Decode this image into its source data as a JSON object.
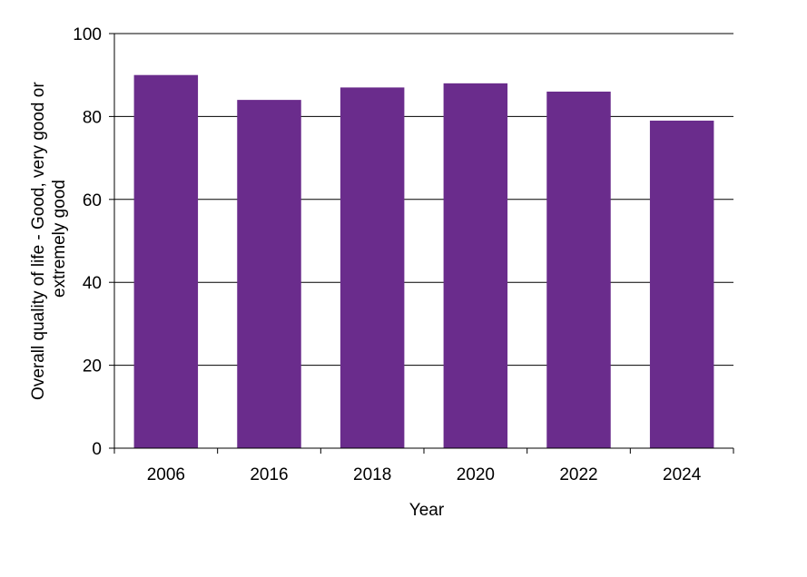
{
  "chart_data": {
    "type": "bar",
    "categories": [
      "2006",
      "2016",
      "2018",
      "2020",
      "2022",
      "2024"
    ],
    "values": [
      90,
      84,
      87,
      88,
      86,
      79
    ],
    "title": "",
    "xlabel": "Year",
    "ylabel_lines": [
      "Overall quality  of life - Good, very good or",
      "extremely  good"
    ],
    "ylim": [
      0,
      100
    ],
    "yticks": [
      "0",
      "20",
      "40",
      "60",
      "80",
      "100"
    ],
    "ytick_values": [
      0,
      20,
      40,
      60,
      80,
      100
    ],
    "grid": true,
    "legend": "none",
    "bar_color": "#6a2c8c"
  }
}
